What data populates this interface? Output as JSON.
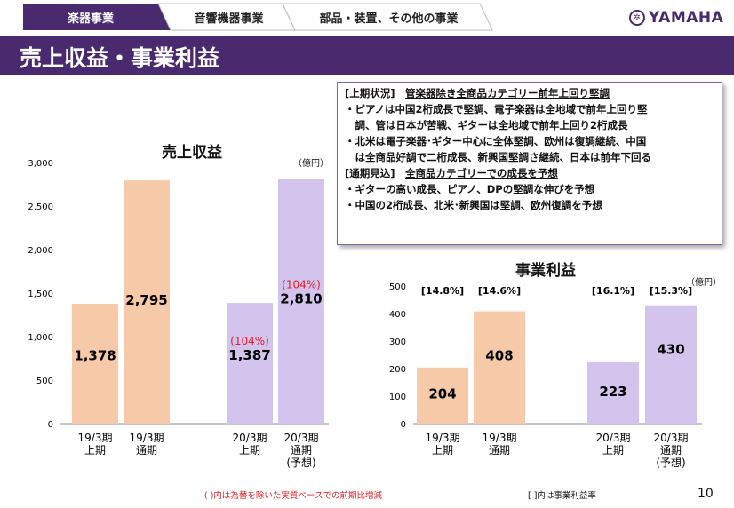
{
  "header": {
    "tabs": [
      {
        "label": "楽器事業"
      },
      {
        "label": "音響機器事業"
      },
      {
        "label": "部品・装置、その他の事業"
      }
    ],
    "logo": "YAMAHA",
    "title": "売上収益・事業利益"
  },
  "summary": {
    "h1_heading": "[上期状況]",
    "h1_subject": "管楽器除き全商品カテゴリー前年上回り堅調",
    "lines1": [
      "・ピアノは中国2桁成長で堅調、電子楽器は全地域で前年上回り堅",
      "　調、管は日本が苦戦、ギターは全地域で前年上回り2桁成長",
      "・北米は電子楽器･ギター中心に全体堅調、欧州は復調継続、中国",
      "　は全商品好調で二桁成長、新興国堅調さ継続、日本は前年下回る"
    ],
    "h2_heading": "[通期見込]",
    "h2_subject": "全商品カテゴリーでの成長を予想",
    "lines2": [
      "・ギターの高い成長、ピアノ、DPの堅調な伸びを予想",
      "・中国の2桁成長、北米･新興国は堅調、欧州復調を予想"
    ]
  },
  "chart_data": [
    {
      "type": "bar",
      "title": "売上収益",
      "unit": "（億円）",
      "ylim": [
        0,
        3000
      ],
      "yticks": [
        "0",
        "500",
        "1,000",
        "1,500",
        "2,000",
        "2,500",
        "3,000"
      ],
      "categories": [
        "19/3期\n上期",
        "19/3期\n通期",
        "20/3期\n上期",
        "20/3期\n通期\n(予想)"
      ],
      "values": [
        1378,
        2795,
        1387,
        2810
      ],
      "value_labels": [
        "1,378",
        "2,795",
        "1,387",
        "2,810"
      ],
      "growth_labels": [
        "",
        "",
        "(104%)",
        "(104%)"
      ],
      "colors": [
        "#f6c9a8",
        "#f6c9a8",
        "#d2c4ec",
        "#d2c4ec"
      ]
    },
    {
      "type": "bar",
      "title": "事業利益",
      "unit": "（億円）",
      "ylim": [
        0,
        500
      ],
      "yticks": [
        "0",
        "100",
        "200",
        "300",
        "400",
        "500"
      ],
      "categories": [
        "19/3期\n上期",
        "19/3期\n通期",
        "20/3期\n上期",
        "20/3期\n通期\n(予想)"
      ],
      "values": [
        204,
        408,
        223,
        430
      ],
      "value_labels": [
        "204",
        "408",
        "223",
        "430"
      ],
      "margin_labels": [
        "[14.8%]",
        "[14.6%]",
        "[16.1%]",
        "[15.3%]"
      ],
      "colors": [
        "#f6c9a8",
        "#f6c9a8",
        "#d2c4ec",
        "#d2c4ec"
      ]
    }
  ],
  "footer": {
    "note1": "( )内は為替を除いた実質ベースでの前期比増減",
    "note2": "[ ]内は事業利益率",
    "page": "10"
  },
  "colors": {
    "brand": "#4a2a6f",
    "growth": "#e0202a"
  }
}
